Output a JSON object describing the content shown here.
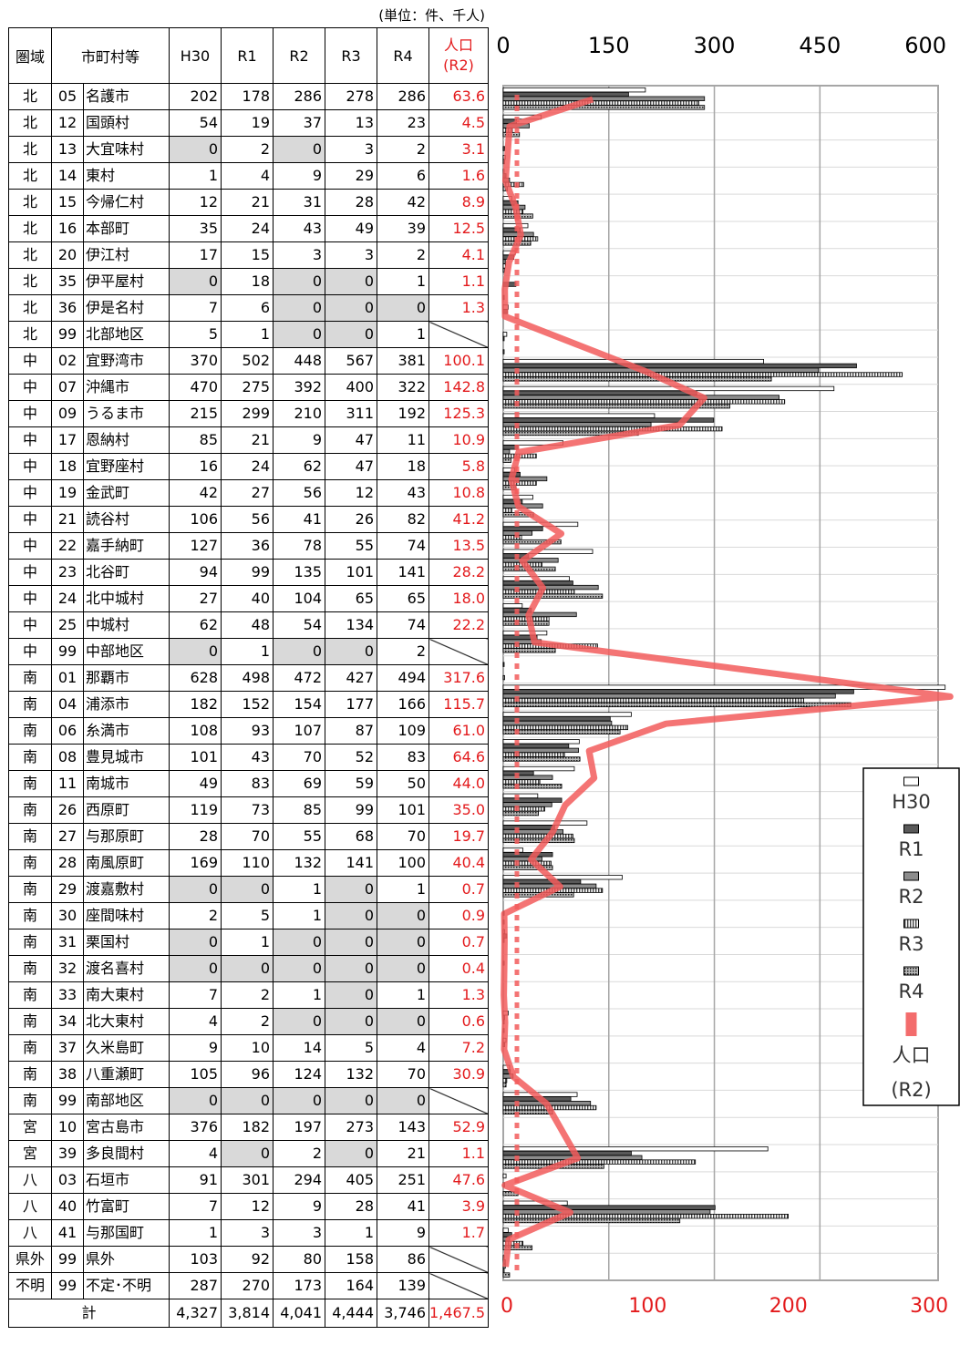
{
  "table": {
    "unit_note": "(単位：件、千人)",
    "headers": {
      "area": "圏域",
      "municipality": "市町村等",
      "h30": "H30",
      "r1": "R1",
      "r2": "R2",
      "r3": "R3",
      "r4": "R4",
      "pop_line1": "人口",
      "pop_line2": "(R2)"
    },
    "rows": [
      {
        "area": "北",
        "code": "05",
        "name": "名護市",
        "values": [
          202,
          178,
          286,
          278,
          286
        ],
        "pop": "63.6"
      },
      {
        "area": "北",
        "code": "12",
        "name": "国頭村",
        "values": [
          54,
          19,
          37,
          13,
          23
        ],
        "pop": "4.5"
      },
      {
        "area": "北",
        "code": "13",
        "name": "大宜味村",
        "values": [
          0,
          2,
          0,
          3,
          2
        ],
        "pop": "3.1"
      },
      {
        "area": "北",
        "code": "14",
        "name": "東村",
        "values": [
          1,
          4,
          9,
          29,
          6
        ],
        "pop": "1.6"
      },
      {
        "area": "北",
        "code": "15",
        "name": "今帰仁村",
        "values": [
          12,
          21,
          31,
          28,
          42
        ],
        "pop": "8.9"
      },
      {
        "area": "北",
        "code": "16",
        "name": "本部町",
        "values": [
          35,
          24,
          43,
          49,
          39
        ],
        "pop": "12.5"
      },
      {
        "area": "北",
        "code": "20",
        "name": "伊江村",
        "values": [
          17,
          15,
          3,
          3,
          2
        ],
        "pop": "4.1"
      },
      {
        "area": "北",
        "code": "35",
        "name": "伊平屋村",
        "values": [
          0,
          18,
          0,
          0,
          1
        ],
        "pop": "1.1"
      },
      {
        "area": "北",
        "code": "36",
        "name": "伊是名村",
        "values": [
          7,
          6,
          0,
          0,
          0
        ],
        "pop": "1.3"
      },
      {
        "area": "北",
        "code": "99",
        "name": "北部地区",
        "values": [
          5,
          1,
          0,
          0,
          1
        ],
        "pop": null
      },
      {
        "area": "中",
        "code": "02",
        "name": "宜野湾市",
        "values": [
          370,
          502,
          448,
          567,
          381
        ],
        "pop": "100.1"
      },
      {
        "area": "中",
        "code": "07",
        "name": "沖縄市",
        "values": [
          470,
          275,
          392,
          400,
          322
        ],
        "pop": "142.8"
      },
      {
        "area": "中",
        "code": "09",
        "name": "うるま市",
        "values": [
          215,
          299,
          210,
          311,
          192
        ],
        "pop": "125.3"
      },
      {
        "area": "中",
        "code": "17",
        "name": "恩納村",
        "values": [
          85,
          21,
          9,
          47,
          11
        ],
        "pop": "10.9"
      },
      {
        "area": "中",
        "code": "18",
        "name": "宜野座村",
        "values": [
          16,
          24,
          62,
          47,
          18
        ],
        "pop": "5.8"
      },
      {
        "area": "中",
        "code": "19",
        "name": "金武町",
        "values": [
          42,
          27,
          56,
          12,
          43
        ],
        "pop": "10.8"
      },
      {
        "area": "中",
        "code": "21",
        "name": "読谷村",
        "values": [
          106,
          56,
          41,
          26,
          82
        ],
        "pop": "41.2"
      },
      {
        "area": "中",
        "code": "22",
        "name": "嘉手納町",
        "values": [
          127,
          36,
          78,
          55,
          74
        ],
        "pop": "13.5"
      },
      {
        "area": "中",
        "code": "23",
        "name": "北谷町",
        "values": [
          94,
          99,
          135,
          101,
          141
        ],
        "pop": "28.2"
      },
      {
        "area": "中",
        "code": "24",
        "name": "北中城村",
        "values": [
          27,
          40,
          104,
          65,
          65
        ],
        "pop": "18.0"
      },
      {
        "area": "中",
        "code": "25",
        "name": "中城村",
        "values": [
          62,
          48,
          54,
          134,
          74
        ],
        "pop": "22.2"
      },
      {
        "area": "中",
        "code": "99",
        "name": "中部地区",
        "values": [
          0,
          1,
          0,
          0,
          2
        ],
        "pop": null
      },
      {
        "area": "南",
        "code": "01",
        "name": "那覇市",
        "values": [
          628,
          498,
          472,
          427,
          494
        ],
        "pop": "317.6"
      },
      {
        "area": "南",
        "code": "04",
        "name": "浦添市",
        "values": [
          182,
          152,
          154,
          177,
          166
        ],
        "pop": "115.7"
      },
      {
        "area": "南",
        "code": "06",
        "name": "糸満市",
        "values": [
          108,
          93,
          107,
          87,
          109
        ],
        "pop": "61.0"
      },
      {
        "area": "南",
        "code": "08",
        "name": "豊見城市",
        "values": [
          101,
          43,
          70,
          52,
          83
        ],
        "pop": "64.6"
      },
      {
        "area": "南",
        "code": "11",
        "name": "南城市",
        "values": [
          49,
          83,
          69,
          59,
          50
        ],
        "pop": "44.0"
      },
      {
        "area": "南",
        "code": "26",
        "name": "西原町",
        "values": [
          119,
          73,
          85,
          99,
          101
        ],
        "pop": "35.0"
      },
      {
        "area": "南",
        "code": "27",
        "name": "与那原町",
        "values": [
          28,
          70,
          55,
          68,
          70
        ],
        "pop": "19.7"
      },
      {
        "area": "南",
        "code": "28",
        "name": "南風原町",
        "values": [
          169,
          110,
          132,
          141,
          100
        ],
        "pop": "40.4"
      },
      {
        "area": "南",
        "code": "29",
        "name": "渡嘉敷村",
        "values": [
          0,
          0,
          1,
          0,
          1
        ],
        "pop": "0.7"
      },
      {
        "area": "南",
        "code": "30",
        "name": "座間味村",
        "values": [
          2,
          5,
          1,
          0,
          0
        ],
        "pop": "0.9"
      },
      {
        "area": "南",
        "code": "31",
        "name": "栗国村",
        "values": [
          0,
          1,
          0,
          0,
          0
        ],
        "pop": "0.7"
      },
      {
        "area": "南",
        "code": "32",
        "name": "渡名喜村",
        "values": [
          0,
          0,
          0,
          0,
          0
        ],
        "pop": "0.4"
      },
      {
        "area": "南",
        "code": "33",
        "name": "南大東村",
        "values": [
          7,
          2,
          1,
          0,
          1
        ],
        "pop": "1.3"
      },
      {
        "area": "南",
        "code": "34",
        "name": "北大東村",
        "values": [
          4,
          2,
          0,
          0,
          0
        ],
        "pop": "0.6"
      },
      {
        "area": "南",
        "code": "37",
        "name": "久米島町",
        "values": [
          9,
          10,
          14,
          5,
          4
        ],
        "pop": "7.2"
      },
      {
        "area": "南",
        "code": "38",
        "name": "八重瀬町",
        "values": [
          105,
          96,
          124,
          132,
          70
        ],
        "pop": "30.9"
      },
      {
        "area": "南",
        "code": "99",
        "name": "南部地区",
        "values": [
          0,
          0,
          0,
          0,
          0
        ],
        "pop": null
      },
      {
        "area": "宮",
        "code": "10",
        "name": "宮古島市",
        "values": [
          376,
          182,
          197,
          273,
          143
        ],
        "pop": "52.9"
      },
      {
        "area": "宮",
        "code": "39",
        "name": "多良間村",
        "values": [
          4,
          0,
          2,
          0,
          21
        ],
        "pop": "1.1"
      },
      {
        "area": "八",
        "code": "03",
        "name": "石垣市",
        "values": [
          91,
          301,
          294,
          405,
          251
        ],
        "pop": "47.6"
      },
      {
        "area": "八",
        "code": "40",
        "name": "竹富町",
        "values": [
          7,
          12,
          9,
          28,
          41
        ],
        "pop": "3.9"
      },
      {
        "area": "八",
        "code": "41",
        "name": "与那国町",
        "values": [
          1,
          3,
          3,
          1,
          9
        ],
        "pop": "1.7"
      },
      {
        "area": "県外",
        "code": "99",
        "name": "県外",
        "values": [
          103,
          92,
          80,
          158,
          86
        ],
        "pop": null
      },
      {
        "area": "不明",
        "code": "99",
        "name": "不定･不明",
        "values": [
          287,
          270,
          173,
          164,
          139
        ],
        "pop": null
      }
    ],
    "shaded_zero_cells": [
      [
        2,
        0
      ],
      [
        2,
        2
      ],
      [
        7,
        0
      ],
      [
        7,
        2
      ],
      [
        7,
        3
      ],
      [
        8,
        2
      ],
      [
        8,
        3
      ],
      [
        8,
        4
      ],
      [
        9,
        2
      ],
      [
        9,
        3
      ],
      [
        21,
        0
      ],
      [
        21,
        2
      ],
      [
        21,
        3
      ],
      [
        30,
        0
      ],
      [
        30,
        1
      ],
      [
        30,
        3
      ],
      [
        31,
        3
      ],
      [
        31,
        4
      ],
      [
        32,
        0
      ],
      [
        32,
        2
      ],
      [
        32,
        3
      ],
      [
        32,
        4
      ],
      [
        33,
        0
      ],
      [
        33,
        1
      ],
      [
        33,
        2
      ],
      [
        33,
        3
      ],
      [
        33,
        4
      ],
      [
        34,
        3
      ],
      [
        35,
        2
      ],
      [
        35,
        3
      ],
      [
        35,
        4
      ],
      [
        38,
        0
      ],
      [
        38,
        1
      ],
      [
        38,
        2
      ],
      [
        38,
        3
      ],
      [
        38,
        4
      ],
      [
        40,
        1
      ],
      [
        40,
        3
      ]
    ],
    "total": {
      "label": "計",
      "values": [
        "4,327",
        "3,814",
        "4,041",
        "4,444",
        "3,746"
      ],
      "pop": "1,467.5"
    }
  },
  "chart_data": {
    "type": "bar",
    "orientation": "horizontal",
    "categories_source": "table.rows (excluding 県外 and 不明)",
    "series": [
      {
        "name": "H30",
        "style": "white-fill"
      },
      {
        "name": "R1",
        "style": "dark-gray"
      },
      {
        "name": "R2",
        "style": "gray"
      },
      {
        "name": "R3",
        "style": "vertical-stripes"
      },
      {
        "name": "R4",
        "style": "dotted"
      }
    ],
    "line_series": {
      "name": "人口 (R2)",
      "color": "#f25c5c",
      "source": "table.rows[].pop"
    },
    "x_axis_top": {
      "ticks": [
        "0",
        "150",
        "300",
        "450",
        "600"
      ],
      "range": [
        0,
        600
      ]
    },
    "x_axis_bottom": {
      "ticks": [
        "0",
        "100",
        "200",
        "300"
      ],
      "range": [
        0,
        300
      ],
      "color": "#e31a1c"
    },
    "grid": true,
    "legend": {
      "position": "right",
      "entries": [
        "H30",
        "R1",
        "R2",
        "R3",
        "R4",
        "人口",
        "(R2)"
      ]
    },
    "colors": {
      "line": "#f25c5c",
      "bar_dark": "#595959",
      "bar_gray": "#8c8c8c",
      "axis_red": "#e31a1c"
    }
  }
}
